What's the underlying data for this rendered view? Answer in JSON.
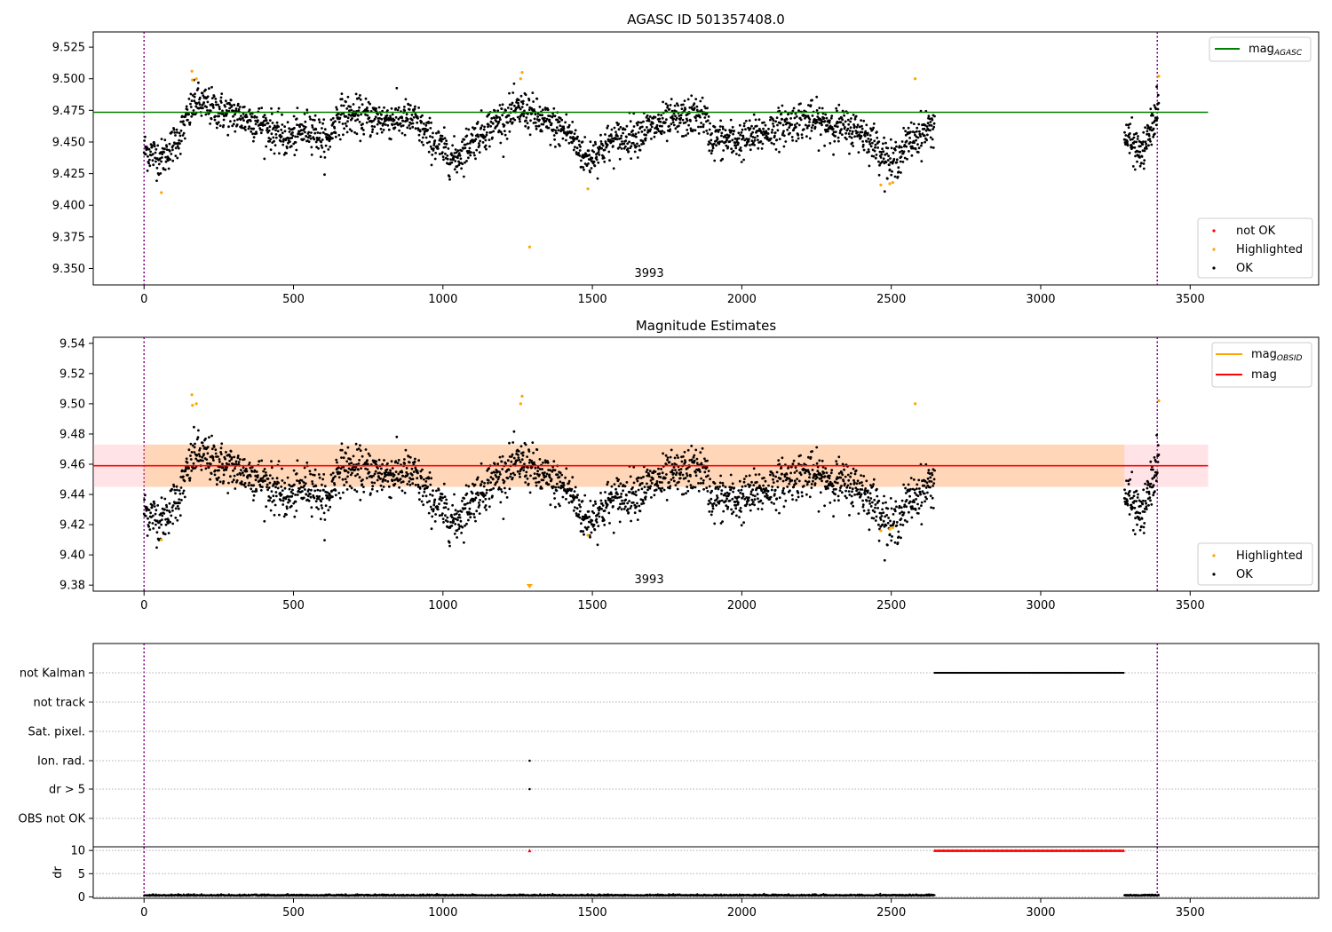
{
  "chart_data": [
    {
      "type": "scatter",
      "title": "AGASC ID 501357408.0",
      "xlim": [
        -170,
        3930
      ],
      "ylim": [
        9.337,
        9.537
      ],
      "yticks": [
        9.35,
        9.375,
        9.4,
        9.425,
        9.45,
        9.475,
        9.5,
        9.525
      ],
      "ytick_labels": [
        "9.350",
        "9.375",
        "9.400",
        "9.425",
        "9.450",
        "9.475",
        "9.500",
        "9.525"
      ],
      "xticks": [
        0,
        500,
        1000,
        1500,
        2000,
        2500,
        3000,
        3500
      ],
      "xtick_labels": [
        "0",
        "500",
        "1000",
        "1500",
        "2000",
        "2500",
        "3000",
        "3500"
      ],
      "obsid_label": "3993",
      "obsid_label_x": 1690,
      "vlines": [
        0,
        3390
      ],
      "agasc_mag": 9.4735,
      "agasc_mag_xrange": [
        -170,
        3560
      ],
      "legend_top": [
        {
          "label": "mag",
          "sub": "AGASC",
          "color": "#008000"
        }
      ],
      "legend_bottom": [
        {
          "label": "not OK",
          "color": "#ff0000"
        },
        {
          "label": "Highlighted",
          "color": "#ffa500"
        },
        {
          "label": "OK",
          "color": "#000000"
        }
      ],
      "highlighted": [
        [
          58,
          9.41
        ],
        [
          160,
          9.506
        ],
        [
          162,
          9.499
        ],
        [
          175,
          9.5
        ],
        [
          1260,
          9.5
        ],
        [
          1265,
          9.505
        ],
        [
          1290,
          9.367
        ],
        [
          1485,
          9.413
        ],
        [
          2465,
          9.416
        ],
        [
          2495,
          9.417
        ],
        [
          2505,
          9.418
        ],
        [
          2580,
          9.5
        ],
        [
          3395,
          9.502
        ]
      ],
      "series_segments": [
        {
          "x_start": 0,
          "x_end": 2645,
          "count": 2300
        },
        {
          "x_start": 3280,
          "x_end": 3395,
          "count": 120
        }
      ]
    },
    {
      "type": "scatter",
      "title": "Magnitude Estimates",
      "xlim": [
        -170,
        3930
      ],
      "ylim": [
        9.376,
        9.544
      ],
      "yticks": [
        9.38,
        9.4,
        9.42,
        9.44,
        9.46,
        9.48,
        9.5,
        9.52,
        9.54
      ],
      "ytick_labels": [
        "9.38",
        "9.40",
        "9.42",
        "9.44",
        "9.46",
        "9.48",
        "9.50",
        "9.52",
        "9.54"
      ],
      "xticks": [
        0,
        500,
        1000,
        1500,
        2000,
        2500,
        3000,
        3500
      ],
      "xtick_labels": [
        "0",
        "500",
        "1000",
        "1500",
        "2000",
        "2500",
        "3000",
        "3500"
      ],
      "obsid_label": "3993",
      "obsid_label_x": 1690,
      "vlines": [
        0,
        3390
      ],
      "mean_mag": 9.459,
      "mag_band": [
        9.445,
        9.473
      ],
      "obsid_mag_band": [
        9.445,
        9.473
      ],
      "band_xrange": [
        -170,
        3560
      ],
      "legend_top": [
        {
          "label": "mag",
          "sub": "OBSID",
          "color": "#ffa500"
        },
        {
          "label": "mag",
          "sub": "",
          "color": "#ff0000"
        }
      ],
      "legend_bottom": [
        {
          "label": "Highlighted",
          "color": "#ffa500"
        },
        {
          "label": "OK",
          "color": "#000000"
        }
      ],
      "highlighted": [
        [
          58,
          9.41
        ],
        [
          160,
          9.506
        ],
        [
          162,
          9.499
        ],
        [
          175,
          9.5
        ],
        [
          1260,
          9.5
        ],
        [
          1265,
          9.505
        ],
        [
          1485,
          9.413
        ],
        [
          2465,
          9.416
        ],
        [
          2495,
          9.417
        ],
        [
          2505,
          9.418
        ],
        [
          2580,
          9.5
        ],
        [
          3395,
          9.502
        ]
      ],
      "offscale_marker_x": 1290
    },
    {
      "type": "scatter",
      "title": "",
      "xlim": [
        -170,
        3930
      ],
      "xticks": [
        0,
        500,
        1000,
        1500,
        2000,
        2500,
        3000,
        3500
      ],
      "xtick_labels": [
        "0",
        "500",
        "1000",
        "1500",
        "2000",
        "2500",
        "3000",
        "3500"
      ],
      "vlines": [
        0,
        3390
      ],
      "flag_rows": [
        "not Kalman",
        "not track",
        "Sat. pixel.",
        "Ion. rad.",
        "dr > 5",
        "OBS not OK"
      ],
      "flags": {
        "not Kalman": [
          [
            2645,
            3280
          ]
        ],
        "Ion. rad.": [
          [
            1290,
            1290
          ]
        ],
        "dr > 5": [
          [
            1290,
            1290
          ]
        ]
      },
      "dr_ylabel": "dr",
      "dr_yticks": [
        0,
        5,
        10
      ],
      "dr_ytick_labels": [
        "0",
        "5",
        "10"
      ],
      "dr_ylim": [
        -0.3,
        10.6
      ],
      "dr_high_value": 10,
      "dr_high_ranges": [
        [
          1290,
          1290
        ],
        [
          2645,
          3280
        ]
      ],
      "dr_baseline": 0.25
    }
  ]
}
